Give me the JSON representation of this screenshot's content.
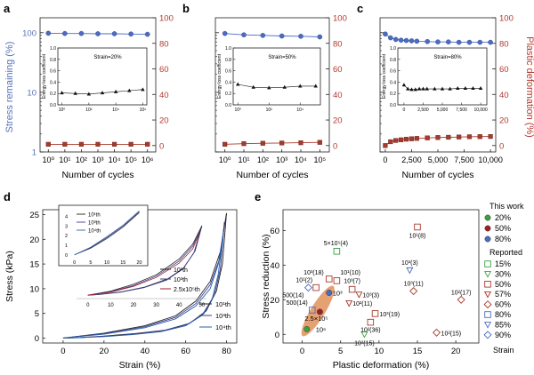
{
  "figure": {
    "panel_labels": [
      "a",
      "b",
      "c",
      "d",
      "e"
    ],
    "colors": {
      "blue": "#4a6cc2",
      "red": "#a83a2c",
      "axis_left": "#5872b8",
      "axis_right": "#b03a2e",
      "green": "#3aa040",
      "orange": "#e08a50",
      "purple": "#6a4a9e",
      "sky": "#5b8fd8",
      "dark_red": "#a11f2a"
    }
  },
  "chart_data": [
    {
      "panel": "a",
      "type": "line",
      "xlabel": "Number of cycles",
      "x_tick_labels": [
        "10⁰",
        "10¹",
        "10²",
        "10³",
        "10⁴",
        "10⁵",
        "10⁶"
      ],
      "xlim_log": [
        -0.5,
        6.5
      ],
      "left_ylabel": "Stress remaining (%)",
      "left_tick_labels": [
        "1",
        "10",
        "100"
      ],
      "right_ylabel": "Plastic deformation (%)",
      "right_tick_labels": [
        "0",
        "20",
        "40",
        "60",
        "80",
        "100"
      ],
      "series": [
        {
          "name": "Stress remaining",
          "x_log": [
            0,
            1,
            2,
            3,
            4,
            5,
            6
          ],
          "values": [
            98,
            97,
            97,
            96,
            96,
            95,
            94
          ]
        },
        {
          "name": "Plastic deformation",
          "x_log": [
            0,
            1,
            2,
            3,
            4,
            5,
            6
          ],
          "values": [
            1,
            1,
            1,
            1,
            1,
            1,
            1
          ]
        }
      ],
      "inset": {
        "ylabel": "Energy loss coefficient",
        "y_tick_labels": [
          "0.0",
          "0.2",
          "0.4",
          "0.6",
          "0.8",
          "1.0"
        ],
        "x_tick_labels": [
          "10⁰",
          "10²",
          "10⁴",
          "10⁶"
        ],
        "annotation": "Strain=20%",
        "x_log": [
          0,
          1,
          2,
          3,
          4,
          5,
          6
        ],
        "values": [
          0.21,
          0.2,
          0.19,
          0.21,
          0.23,
          0.25,
          0.27
        ]
      }
    },
    {
      "panel": "b",
      "type": "line",
      "xlabel": "Number of cycles",
      "x_tick_labels": [
        "10⁰",
        "10¹",
        "10²",
        "10³",
        "10⁴",
        "10⁵"
      ],
      "xlim_log": [
        -0.5,
        5.5
      ],
      "right_tick_labels": [
        "0",
        "20",
        "40",
        "60",
        "80",
        "100"
      ],
      "series": [
        {
          "name": "Stress remaining",
          "x_log": [
            0,
            1,
            2,
            3,
            4,
            5
          ],
          "values": [
            97,
            92,
            90,
            88,
            87,
            85
          ]
        },
        {
          "name": "Plastic deformation",
          "x_log": [
            0,
            1,
            2,
            3,
            4,
            5
          ],
          "values": [
            1,
            1.5,
            1.8,
            2,
            2.2,
            2.5
          ]
        }
      ],
      "inset": {
        "ylabel": "Energy loss coefficient",
        "y_tick_labels": [
          "0.0",
          "0.2",
          "0.4",
          "0.6",
          "0.8",
          "1.0"
        ],
        "x_tick_labels": [
          "10⁰",
          "10²",
          "10⁴"
        ],
        "annotation": "Strain=50%",
        "x_log": [
          0,
          1,
          2,
          3,
          4,
          5
        ],
        "values": [
          0.36,
          0.31,
          0.3,
          0.31,
          0.33,
          0.33
        ]
      }
    },
    {
      "panel": "c",
      "type": "line",
      "xlabel": "Number of cycles",
      "x_tick_labels": [
        "0",
        "2,500",
        "5,000",
        "7,500",
        "10,000"
      ],
      "xlim": [
        -500,
        10500
      ],
      "right_tick_labels": [
        "0",
        "20",
        "40",
        "60",
        "80",
        "100"
      ],
      "series": [
        {
          "name": "Stress remaining",
          "x": [
            0,
            500,
            1000,
            1500,
            2000,
            2500,
            3000,
            4000,
            5000,
            6000,
            7000,
            8000,
            9000,
            10000
          ],
          "values": [
            95,
            82,
            77,
            75,
            74,
            73,
            72,
            71,
            70,
            70,
            69,
            69,
            69,
            69
          ]
        },
        {
          "name": "Plastic deformation",
          "x": [
            0,
            500,
            1000,
            1500,
            2000,
            2500,
            3000,
            4000,
            5000,
            6000,
            7000,
            8000,
            9000,
            10000
          ],
          "values": [
            0,
            3,
            4,
            4.5,
            5,
            5.3,
            5.6,
            6,
            6.3,
            6.5,
            6.7,
            6.9,
            7,
            7.1
          ]
        }
      ],
      "inset": {
        "ylabel": "Energy loss coefficient",
        "y_tick_labels": [
          "0.0",
          "0.2",
          "0.4",
          "0.6",
          "0.8",
          "1.0"
        ],
        "x_tick_labels": [
          "0",
          "2,500",
          "5,000",
          "7,500",
          "10,000"
        ],
        "annotation": "Strain=80%",
        "x": [
          0,
          500,
          1000,
          1500,
          2000,
          2500,
          3000,
          4000,
          5000,
          6000,
          7000,
          8000,
          9000,
          10000
        ],
        "values": [
          0.35,
          0.28,
          0.27,
          0.27,
          0.28,
          0.28,
          0.28,
          0.28,
          0.28,
          0.28,
          0.29,
          0.29,
          0.29,
          0.29
        ]
      }
    },
    {
      "panel": "d",
      "type": "line",
      "xlabel": "Strain (%)",
      "ylabel": "Stress (kPa)",
      "xlim": [
        -10,
        85
      ],
      "ylim": [
        -1,
        26
      ],
      "x_tick_labels": [
        "0",
        "20",
        "40",
        "60",
        "80"
      ],
      "y_tick_labels": [
        "0",
        "5",
        "10",
        "15",
        "20",
        "25"
      ],
      "legend": [
        "10¹th",
        "10³th",
        "10⁴th"
      ],
      "series": [
        {
          "name": "loading 10¹th",
          "x": [
            0,
            20,
            40,
            55,
            65,
            72,
            77,
            80
          ],
          "values": [
            0,
            1.0,
            2.5,
            4.5,
            7.5,
            11.5,
            17.5,
            25.3
          ]
        },
        {
          "name": "unloading 10¹th",
          "x": [
            80,
            78,
            75,
            70,
            62,
            50,
            35,
            20,
            8,
            0
          ],
          "values": [
            25.3,
            15,
            9.5,
            5.5,
            3,
            1.6,
            0.9,
            0.4,
            0.1,
            0
          ]
        },
        {
          "name": "loading 10³th",
          "x": [
            0,
            20,
            40,
            55,
            65,
            72,
            77,
            79
          ],
          "values": [
            0,
            0.9,
            2.3,
            4.2,
            7.0,
            10.8,
            16.5,
            23.5
          ]
        },
        {
          "name": "unloading 10³th",
          "x": [
            79,
            77,
            74,
            69,
            61,
            49,
            35,
            20,
            8,
            0
          ],
          "values": [
            23.5,
            14,
            8.8,
            5.0,
            2.8,
            1.5,
            0.8,
            0.35,
            0.1,
            0
          ]
        },
        {
          "name": "loading 10⁴th",
          "x": [
            0,
            20,
            40,
            55,
            65,
            72,
            76,
            78.5
          ],
          "values": [
            0,
            0.8,
            2.1,
            3.9,
            6.5,
            10.0,
            15.0,
            21.5
          ]
        },
        {
          "name": "unloading 10⁴th",
          "x": [
            78.5,
            76,
            73,
            68,
            60,
            48,
            34,
            20,
            8,
            0
          ],
          "values": [
            21.5,
            13,
            8.0,
            4.6,
            2.5,
            1.3,
            0.7,
            0.3,
            0.1,
            0
          ]
        }
      ],
      "inset": {
        "legend": [
          "10¹th",
          "10³th",
          "10⁴th"
        ],
        "x_tick_labels": [
          "0",
          "5",
          "10",
          "15",
          "20"
        ],
        "y_tick_labels": [
          "0",
          "1",
          "2",
          "3",
          "4"
        ],
        "xlim": [
          -1,
          21.5
        ],
        "ylim": [
          -0.2,
          4.8
        ],
        "series": [
          {
            "name": "10¹th",
            "x": [
              0,
              5,
              10,
              15,
              20
            ],
            "values": [
              0,
              0.7,
              1.7,
              2.9,
              4.4
            ]
          },
          {
            "name": "10³th",
            "x": [
              0,
              5,
              10,
              15,
              20
            ],
            "values": [
              0,
              0.75,
              1.8,
              3.0,
              4.5
            ]
          },
          {
            "name": "10⁴th",
            "x": [
              0,
              5,
              10,
              15,
              20
            ],
            "values": [
              0,
              0.8,
              1.9,
              3.1,
              4.6
            ]
          }
        ]
      },
      "inset2": {
        "legend": [
          "10¹th",
          "10³th",
          "2.5x10⁵th"
        ],
        "x_tick_labels": [
          "0",
          "10",
          "20",
          "30",
          "40",
          "50"
        ],
        "xlim": [
          -5,
          52
        ],
        "ylim": [
          -0.5,
          11.5
        ],
        "series": [
          {
            "name": "10¹th loading",
            "x": [
              0,
              10,
              20,
              30,
              40,
              46,
              50
            ],
            "values": [
              0,
              0.6,
              1.6,
              3.0,
              5.3,
              7.5,
              10.2
            ]
          },
          {
            "name": "10¹th unloading",
            "x": [
              50,
              47,
              42,
              35,
              25,
              15,
              5,
              0
            ],
            "values": [
              10.2,
              6.5,
              4.0,
              2.4,
              1.2,
              0.5,
              0.1,
              0
            ]
          },
          {
            "name": "10³th loading",
            "x": [
              0,
              10,
              20,
              30,
              40,
              46,
              49.5
            ],
            "values": [
              0,
              0.5,
              1.4,
              2.8,
              5.0,
              7.2,
              9.7
            ]
          },
          {
            "name": "10³th unloading",
            "x": [
              49.5,
              46.5,
              41.5,
              34.5,
              24.5,
              14.5,
              5,
              0
            ],
            "values": [
              9.7,
              6.2,
              3.8,
              2.2,
              1.1,
              0.45,
              0.1,
              0
            ]
          },
          {
            "name": "2.5x10⁵th",
            "x": [
              0,
              10,
              20,
              30,
              40,
              46,
              49
            ],
            "values": [
              0,
              0.45,
              1.3,
              2.6,
              4.7,
              6.8,
              9.2
            ]
          }
        ]
      }
    },
    {
      "panel": "e",
      "type": "scatter",
      "xlabel": "Plastic deformation (%)",
      "ylabel": "Stress reduction (%)",
      "xlim": [
        -2.5,
        23
      ],
      "ylim": [
        -5,
        72
      ],
      "x_tick_labels": [
        "0",
        "5",
        "10",
        "15",
        "20"
      ],
      "y_tick_labels": [
        "0",
        "20",
        "40",
        "60"
      ],
      "legend_title_top": "This work",
      "legend_title_mid": "Reported",
      "legend_footer": "Strain",
      "legend_this_work": [
        "20%",
        "50%",
        "80%"
      ],
      "legend_reported": [
        "15%",
        "30%",
        "50%",
        "57%",
        "60%",
        "80%",
        "85%",
        "90%"
      ],
      "this_work_points": [
        {
          "series": "20%",
          "x": 0.6,
          "y": 3,
          "label": "10⁶"
        },
        {
          "series": "50%",
          "x": 2.3,
          "y": 13,
          "label": "2.5×10⁵"
        },
        {
          "series": "80%",
          "x": 3.5,
          "y": 24,
          "label": "10³"
        }
      ],
      "reported_points": [
        {
          "series": "15%",
          "x": 4.5,
          "y": 48,
          "label": "5×10⁵(4)"
        },
        {
          "series": "30%",
          "x": 8.1,
          "y": 0,
          "label": "10²(15)"
        },
        {
          "series": "50%",
          "x": 15.0,
          "y": 62,
          "label": "10¹(8)"
        },
        {
          "series": "50%",
          "x": 3.5,
          "y": 32,
          "label": "10³(18)"
        },
        {
          "series": "50%",
          "x": 4.5,
          "y": 31,
          "label": "10¹(10)"
        },
        {
          "series": "50%",
          "x": 1.8,
          "y": 27,
          "label": "10¹(2)"
        },
        {
          "series": "50%",
          "x": 6.5,
          "y": 26,
          "label": "10³(7)"
        },
        {
          "series": "50%",
          "x": 9.5,
          "y": 12,
          "label": "10³(19)"
        },
        {
          "series": "50%",
          "x": 8.9,
          "y": 7,
          "label": "10²(36)"
        },
        {
          "series": "57%",
          "x": 7.4,
          "y": 23,
          "label": "10³(3)"
        },
        {
          "series": "57%",
          "x": 6.1,
          "y": 18,
          "label": "10²(11)"
        },
        {
          "series": "60%",
          "x": 14.5,
          "y": 25,
          "label": "10³(11)"
        },
        {
          "series": "60%",
          "x": 20.7,
          "y": 20,
          "label": "10²(17)"
        },
        {
          "series": "60%",
          "x": 17.5,
          "y": 1,
          "label": "10²(15)"
        },
        {
          "series": "80%",
          "x": 1.3,
          "y": 14,
          "label": "500(14)"
        },
        {
          "series": "85%",
          "x": 14.0,
          "y": 37,
          "label": "10³(3)"
        },
        {
          "series": "90%",
          "x": 0.8,
          "y": 27,
          "label": "500(14)"
        }
      ]
    }
  ]
}
